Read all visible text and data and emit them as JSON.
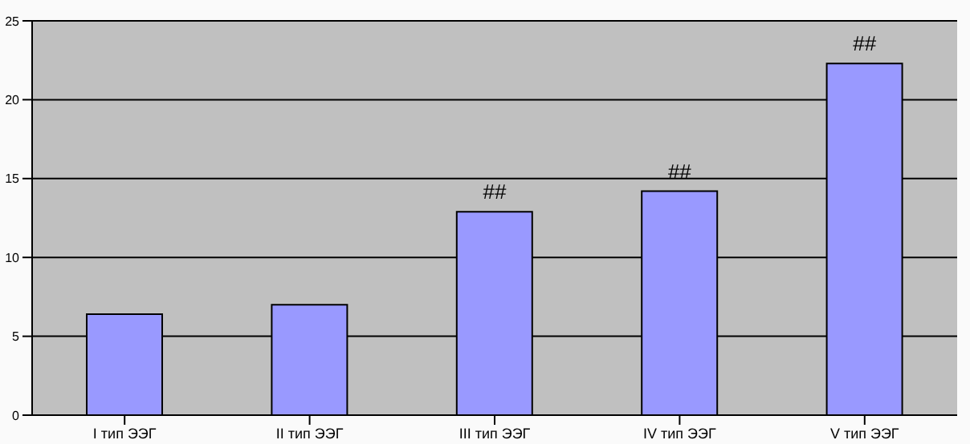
{
  "chart_data": {
    "type": "bar",
    "categories": [
      "I тип ЭЭГ",
      "II тип ЭЭГ",
      "III тип ЭЭГ",
      "IV тип ЭЭГ",
      "V тип ЭЭГ"
    ],
    "values": [
      6.4,
      7.0,
      12.9,
      14.2,
      22.3
    ],
    "color": "#9999ff",
    "ylim": [
      0,
      25
    ],
    "yticks": [
      0,
      5,
      10,
      15,
      20,
      25
    ],
    "grid": "y",
    "annotations": [
      {
        "text": "##",
        "x": "III тип ЭЭГ",
        "y": 12.9
      },
      {
        "text": "##",
        "x": "IV тип ЭЭГ",
        "y": 14.2
      },
      {
        "text": "##",
        "x": "V тип ЭЭГ",
        "y": 22.3
      }
    ]
  }
}
